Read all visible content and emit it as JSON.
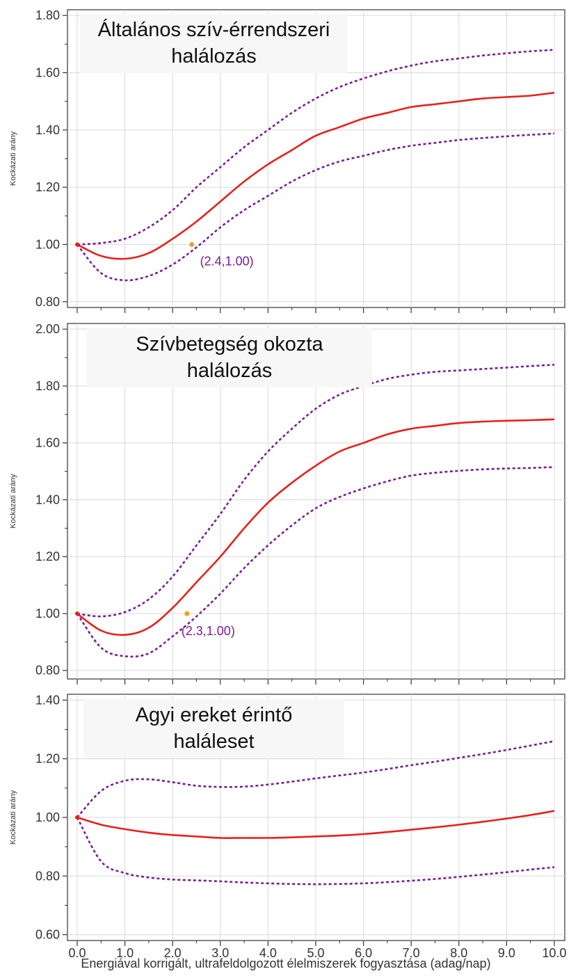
{
  "figure": {
    "xlabel": "Energiával korrigált, ultrafeldolgozott élelmiszerek fogyasztása (adag/nap)",
    "x_tick_labels": [
      "0.0",
      "1.0",
      "2.0",
      "3.0",
      "4.0",
      "5.0",
      "6.0",
      "7.0",
      "8.0",
      "9.0",
      "10.0"
    ],
    "colors": {
      "estimate": "#e8201a",
      "confidence_interval": "#7b1c93",
      "marker": "#f0a020",
      "axis": "#333333",
      "grid": "#d9d9d9"
    }
  },
  "chart_data": [
    {
      "type": "line",
      "title": [
        "Általános szív-érrendszeri",
        "halálozás"
      ],
      "ylabel": "Kockázati arány",
      "xlim": [
        0,
        10
      ],
      "ylim": [
        0.78,
        1.82
      ],
      "y_ticks": [
        0.8,
        1.0,
        1.2,
        1.4,
        1.6,
        1.8
      ],
      "y_tick_labels": [
        "0.80",
        "1.00",
        "1.20",
        "1.40",
        "1.60",
        "1.80"
      ],
      "grid": true,
      "x": [
        0,
        0.5,
        1,
        1.5,
        2,
        2.5,
        3,
        3.5,
        4,
        4.5,
        5,
        5.5,
        6,
        6.5,
        7,
        7.5,
        8,
        8.5,
        9,
        9.5,
        10
      ],
      "series": [
        {
          "role": "estimate",
          "style": "solid",
          "values": [
            1.0,
            0.96,
            0.95,
            0.97,
            1.02,
            1.08,
            1.15,
            1.22,
            1.28,
            1.33,
            1.38,
            1.41,
            1.44,
            1.46,
            1.48,
            1.49,
            1.5,
            1.51,
            1.515,
            1.52,
            1.53
          ]
        },
        {
          "role": "upper_ci",
          "style": "dotted",
          "values": [
            1.0,
            1.005,
            1.02,
            1.06,
            1.12,
            1.2,
            1.27,
            1.34,
            1.4,
            1.46,
            1.51,
            1.55,
            1.58,
            1.605,
            1.625,
            1.64,
            1.65,
            1.66,
            1.668,
            1.675,
            1.68
          ]
        },
        {
          "role": "lower_ci",
          "style": "dotted",
          "values": [
            1.0,
            0.9,
            0.875,
            0.89,
            0.93,
            0.99,
            1.06,
            1.12,
            1.17,
            1.22,
            1.26,
            1.29,
            1.31,
            1.33,
            1.345,
            1.355,
            1.365,
            1.372,
            1.378,
            1.383,
            1.388
          ]
        }
      ],
      "annotations": [
        {
          "x": 2.4,
          "y": 1.0,
          "text": "(2.4,1.00)"
        }
      ]
    },
    {
      "type": "line",
      "title": [
        "Szívbetegség okozta",
        "halálozás"
      ],
      "ylabel": "Kockázati arány",
      "xlim": [
        0,
        10
      ],
      "ylim": [
        0.77,
        2.02
      ],
      "y_ticks": [
        0.8,
        1.0,
        1.2,
        1.4,
        1.6,
        1.8,
        2.0
      ],
      "y_tick_labels": [
        "0.80",
        "1.00",
        "1.20",
        "1.40",
        "1.60",
        "1.80",
        "2.00"
      ],
      "grid": true,
      "x": [
        0,
        0.5,
        1,
        1.5,
        2,
        2.5,
        3,
        3.5,
        4,
        4.5,
        5,
        5.5,
        6,
        6.5,
        7,
        7.5,
        8,
        8.5,
        9,
        9.5,
        10
      ],
      "series": [
        {
          "role": "estimate",
          "style": "solid",
          "values": [
            1.0,
            0.94,
            0.925,
            0.95,
            1.02,
            1.11,
            1.2,
            1.3,
            1.39,
            1.46,
            1.52,
            1.57,
            1.6,
            1.63,
            1.65,
            1.66,
            1.67,
            1.675,
            1.678,
            1.68,
            1.683
          ]
        },
        {
          "role": "upper_ci",
          "style": "dotted",
          "values": [
            1.0,
            0.99,
            1.005,
            1.05,
            1.13,
            1.24,
            1.35,
            1.47,
            1.57,
            1.65,
            1.72,
            1.77,
            1.8,
            1.825,
            1.84,
            1.85,
            1.855,
            1.86,
            1.865,
            1.87,
            1.875
          ]
        },
        {
          "role": "lower_ci",
          "style": "dotted",
          "values": [
            1.0,
            0.88,
            0.85,
            0.86,
            0.92,
            0.99,
            1.07,
            1.16,
            1.24,
            1.31,
            1.37,
            1.41,
            1.44,
            1.465,
            1.485,
            1.495,
            1.502,
            1.507,
            1.51,
            1.512,
            1.515
          ]
        }
      ],
      "annotations": [
        {
          "x": 2.3,
          "y": 1.0,
          "text": "(2.3,1.00)"
        }
      ]
    },
    {
      "type": "line",
      "title": [
        "Agyi ereket érintő",
        "haláleset"
      ],
      "ylabel": "Kockázati arány",
      "xlim": [
        0,
        10
      ],
      "ylim": [
        0.58,
        1.42
      ],
      "y_ticks": [
        0.6,
        0.8,
        1.0,
        1.2,
        1.4
      ],
      "y_tick_labels": [
        "0.60",
        "0.80",
        "1.00",
        "1.20",
        "1.40"
      ],
      "grid": true,
      "x": [
        0,
        0.5,
        1,
        1.5,
        2,
        2.5,
        3,
        3.5,
        4,
        4.5,
        5,
        5.5,
        6,
        6.5,
        7,
        7.5,
        8,
        8.5,
        9,
        9.5,
        10
      ],
      "series": [
        {
          "role": "estimate",
          "style": "solid",
          "values": [
            1.0,
            0.975,
            0.96,
            0.948,
            0.94,
            0.935,
            0.93,
            0.93,
            0.93,
            0.932,
            0.935,
            0.938,
            0.943,
            0.95,
            0.958,
            0.966,
            0.975,
            0.985,
            0.996,
            1.008,
            1.022
          ]
        },
        {
          "role": "upper_ci",
          "style": "dotted",
          "values": [
            1.0,
            1.09,
            1.125,
            1.13,
            1.12,
            1.108,
            1.104,
            1.105,
            1.112,
            1.122,
            1.133,
            1.143,
            1.153,
            1.165,
            1.178,
            1.19,
            1.203,
            1.216,
            1.23,
            1.245,
            1.26
          ]
        },
        {
          "role": "lower_ci",
          "style": "dotted",
          "values": [
            1.0,
            0.85,
            0.81,
            0.795,
            0.788,
            0.785,
            0.782,
            0.778,
            0.775,
            0.773,
            0.772,
            0.773,
            0.775,
            0.779,
            0.784,
            0.79,
            0.797,
            0.805,
            0.813,
            0.822,
            0.83
          ]
        }
      ],
      "annotations": []
    }
  ]
}
